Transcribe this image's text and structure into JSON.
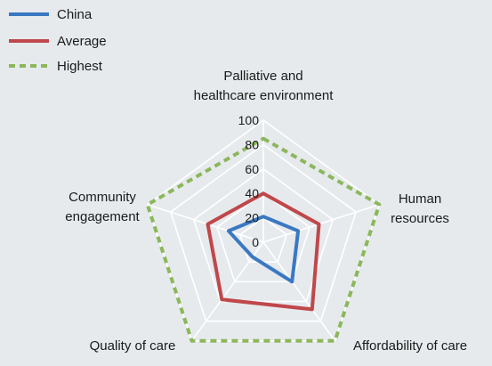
{
  "chart_data": {
    "type": "radar",
    "axes": [
      [
        "Palliative and",
        "healthcare environment"
      ],
      [
        "Human",
        "resources"
      ],
      [
        "Affordability of care"
      ],
      [
        "Quality of care"
      ],
      [
        "Community",
        "engagement"
      ]
    ],
    "ticks": [
      "0",
      "20",
      "40",
      "60",
      "80",
      "100"
    ],
    "range": [
      0,
      100
    ],
    "grid": true,
    "legend_position": "top-left",
    "series": [
      {
        "name": "China",
        "values": [
          21,
          30,
          40,
          15,
          30
        ],
        "color": "#3a78c3",
        "style": "solid"
      },
      {
        "name": "Average",
        "values": [
          40,
          48,
          68,
          58,
          48
        ],
        "color": "#c0474a",
        "style": "solid"
      },
      {
        "name": "Highest",
        "values": [
          85,
          100,
          100,
          100,
          100
        ],
        "color": "#8cb75b",
        "style": "dashed"
      }
    ]
  }
}
